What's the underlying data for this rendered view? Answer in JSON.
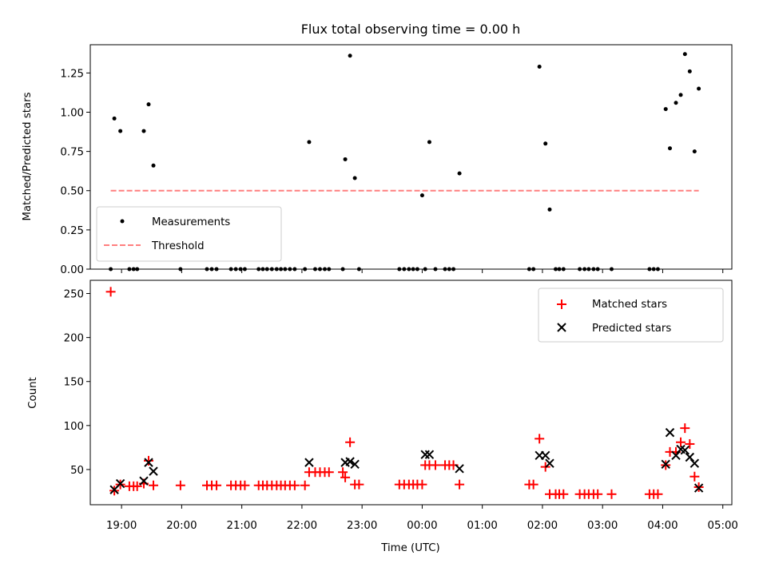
{
  "chart_data": [
    {
      "type": "scatter",
      "title": "Flux total observing time = 0.00 h",
      "xlabel": "",
      "ylabel": "Matched/Predicted stars",
      "ylim": [
        0,
        1.43
      ],
      "xlim": [
        18.48,
        29.15
      ],
      "yticks": [
        0.0,
        0.25,
        0.5,
        0.75,
        1.0,
        1.25
      ],
      "ytick_labels": [
        "0.00",
        "0.25",
        "0.50",
        "0.75",
        "1.00",
        "1.25"
      ],
      "legend_position": "lower-left",
      "series": [
        {
          "name": "Measurements",
          "color": "#000000",
          "marker": "dot",
          "x": [
            18.82,
            18.88,
            18.98,
            19.13,
            19.2,
            19.26,
            19.37,
            19.45,
            19.53,
            19.98,
            20.42,
            20.5,
            20.58,
            20.82,
            20.9,
            20.98,
            21.05,
            21.28,
            21.35,
            21.42,
            21.5,
            21.58,
            21.65,
            21.72,
            21.8,
            21.88,
            22.05,
            22.12,
            22.22,
            22.3,
            22.38,
            22.45,
            22.68,
            22.72,
            22.8,
            22.88,
            22.95,
            23.62,
            23.7,
            23.78,
            23.85,
            23.92,
            24.0,
            24.05,
            24.12,
            24.22,
            24.38,
            24.45,
            24.52,
            24.62,
            25.78,
            25.85,
            25.95,
            26.05,
            26.12,
            26.22,
            26.28,
            26.35,
            26.62,
            26.7,
            26.77,
            26.85,
            26.92,
            27.15,
            27.78,
            27.85,
            27.92,
            28.05,
            28.12,
            28.22,
            28.3,
            28.37,
            28.45,
            28.53,
            28.6
          ],
          "y": [
            0,
            0.96,
            0.88,
            0,
            0,
            0,
            0.88,
            1.05,
            0.66,
            0,
            0,
            0,
            0,
            0,
            0,
            0,
            0,
            0,
            0,
            0,
            0,
            0,
            0,
            0,
            0,
            0,
            0,
            0.81,
            0,
            0,
            0,
            0,
            0,
            0.7,
            1.36,
            0.58,
            0,
            0,
            0,
            0,
            0,
            0,
            0.47,
            0,
            0.81,
            0,
            0,
            0,
            0,
            0.61,
            0,
            0,
            1.29,
            0.8,
            0.38,
            0,
            0,
            0,
            0,
            0,
            0,
            0,
            0,
            0,
            0,
            0,
            0,
            1.02,
            0.77,
            1.06,
            1.11,
            1.37,
            1.26,
            0.75,
            1.15
          ]
        },
        {
          "name": "Threshold",
          "color": "#ff7f7f",
          "style": "dashed",
          "x": [
            18.82,
            28.6
          ],
          "y": [
            0.5,
            0.5
          ]
        }
      ]
    },
    {
      "type": "scatter",
      "title": "",
      "xlabel": "Time (UTC)",
      "ylabel": "Count",
      "ylim": [
        10,
        265
      ],
      "xlim": [
        18.48,
        29.15
      ],
      "yticks": [
        50,
        100,
        150,
        200,
        250
      ],
      "ytick_labels": [
        "50",
        "100",
        "150",
        "200",
        "250"
      ],
      "xticks": [
        19,
        20,
        21,
        22,
        23,
        24,
        25,
        26,
        27,
        28,
        29
      ],
      "xtick_labels": [
        "19:00",
        "20:00",
        "21:00",
        "22:00",
        "23:00",
        "00:00",
        "01:00",
        "02:00",
        "03:00",
        "04:00",
        "05:00"
      ],
      "legend_position": "top-right",
      "series": [
        {
          "name": "Matched stars",
          "color": "#ff0000",
          "marker": "plus",
          "x": [
            18.82,
            18.88,
            18.98,
            19.13,
            19.2,
            19.26,
            19.37,
            19.45,
            19.53,
            19.98,
            20.42,
            20.5,
            20.58,
            20.82,
            20.9,
            20.98,
            21.05,
            21.28,
            21.35,
            21.42,
            21.5,
            21.58,
            21.65,
            21.72,
            21.8,
            21.88,
            22.05,
            22.12,
            22.22,
            22.3,
            22.38,
            22.45,
            22.68,
            22.72,
            22.8,
            22.88,
            22.95,
            23.62,
            23.7,
            23.78,
            23.85,
            23.92,
            24.0,
            24.05,
            24.12,
            24.22,
            24.38,
            24.45,
            24.52,
            24.62,
            25.78,
            25.85,
            25.95,
            26.05,
            26.12,
            26.22,
            26.28,
            26.35,
            26.62,
            26.7,
            26.77,
            26.85,
            26.92,
            27.15,
            27.78,
            27.85,
            27.92,
            28.05,
            28.12,
            28.22,
            28.3,
            28.37,
            28.45,
            28.53,
            28.6
          ],
          "y": [
            252,
            26,
            33,
            31,
            31,
            31,
            34,
            60,
            32,
            32,
            32,
            32,
            32,
            32,
            32,
            32,
            32,
            32,
            32,
            32,
            32,
            32,
            32,
            32,
            32,
            32,
            32,
            47,
            47,
            47,
            47,
            47,
            47,
            41,
            81,
            33,
            33,
            33,
            33,
            33,
            33,
            33,
            33,
            55,
            55,
            55,
            55,
            55,
            55,
            33,
            33,
            33,
            85,
            53,
            22,
            22,
            22,
            22,
            22,
            22,
            22,
            22,
            22,
            22,
            22,
            22,
            22,
            55,
            70,
            70,
            81,
            97,
            79,
            42,
            30
          ]
        },
        {
          "name": "Predicted stars",
          "color": "#000000",
          "marker": "x",
          "x": [
            18.88,
            18.98,
            19.37,
            19.45,
            19.53,
            22.12,
            22.72,
            22.8,
            22.88,
            24.05,
            24.12,
            24.62,
            25.95,
            26.05,
            26.12,
            28.05,
            28.12,
            28.22,
            28.3,
            28.37,
            28.45,
            28.53,
            28.6
          ],
          "y": [
            27,
            34,
            37,
            58,
            48,
            58,
            58,
            59,
            56,
            67,
            67,
            51,
            66,
            66,
            57,
            56,
            92,
            66,
            73,
            72,
            64,
            57,
            29
          ]
        }
      ]
    }
  ]
}
